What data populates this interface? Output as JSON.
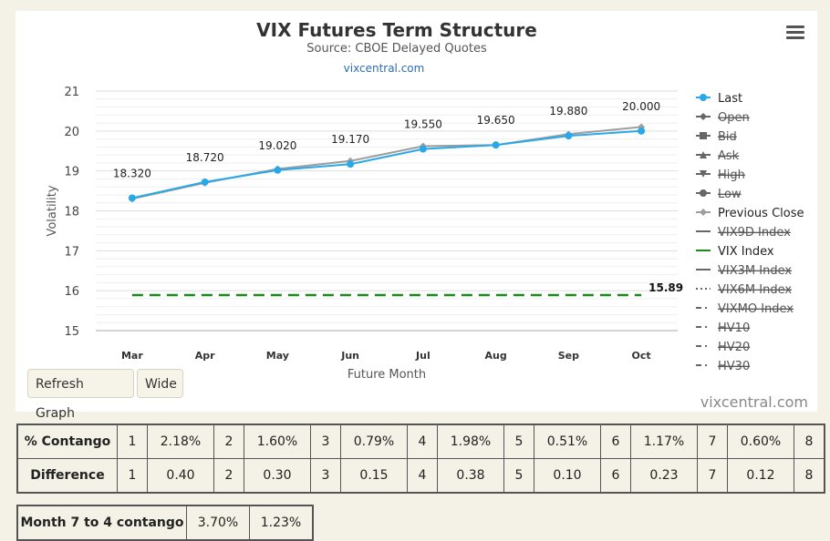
{
  "chart_data": {
    "type": "line",
    "title": "VIX Futures Term Structure",
    "subtitle": "Source: CBOE Delayed Quotes",
    "link": "vixcentral.com",
    "xlabel": "Future Month",
    "ylabel": "Volatility",
    "ylim": [
      15,
      21
    ],
    "y_ticks": [
      15,
      16,
      17,
      18,
      19,
      20,
      21
    ],
    "categories": [
      "Mar",
      "Apr",
      "May",
      "Jun",
      "Jul",
      "Aug",
      "Sep",
      "Oct"
    ],
    "grid": true,
    "legend_position": "right",
    "series": [
      {
        "name": "Last",
        "values": [
          18.32,
          18.72,
          19.02,
          19.17,
          19.55,
          19.65,
          19.88,
          20.0
        ],
        "color": "#29a8e8",
        "data_labels": [
          "18.320",
          "18.720",
          "19.020",
          "19.170",
          "19.550",
          "19.650",
          "19.880",
          "20.000"
        ]
      },
      {
        "name": "Previous Close",
        "values": [
          18.3,
          18.7,
          19.05,
          19.25,
          19.62,
          19.65,
          19.92,
          20.1
        ],
        "color": "#9e9e9e"
      },
      {
        "name": "VIX Index",
        "values": [
          15.89,
          15.89,
          15.89,
          15.89,
          15.89,
          15.89,
          15.89,
          15.89
        ],
        "color": "#1a8a1a",
        "end_label": "15.89"
      }
    ],
    "legend": [
      {
        "name": "Last",
        "hidden": false,
        "symbol": "circle",
        "color": "#29a8e8"
      },
      {
        "name": "Open",
        "hidden": true,
        "symbol": "diamond",
        "color": "#555555"
      },
      {
        "name": "Bid",
        "hidden": true,
        "symbol": "square",
        "color": "#555555"
      },
      {
        "name": "Ask",
        "hidden": true,
        "symbol": "triangle",
        "color": "#555555"
      },
      {
        "name": "High",
        "hidden": true,
        "symbol": "triangle-down",
        "color": "#555555"
      },
      {
        "name": "Low",
        "hidden": true,
        "symbol": "circle",
        "color": "#555555"
      },
      {
        "name": "Previous Close",
        "hidden": false,
        "symbol": "diamond",
        "color": "#9e9e9e"
      },
      {
        "name": "VIX9D Index",
        "hidden": true,
        "symbol": "line",
        "color": "#555555"
      },
      {
        "name": "VIX Index",
        "hidden": false,
        "symbol": "line",
        "color": "#1a8a1a"
      },
      {
        "name": "VIX3M Index",
        "hidden": true,
        "symbol": "line",
        "color": "#555555"
      },
      {
        "name": "VIX6M Index",
        "hidden": true,
        "symbol": "dotted",
        "color": "#555555"
      },
      {
        "name": "VIXMO Index",
        "hidden": true,
        "symbol": "dashdot",
        "color": "#555555"
      },
      {
        "name": "HV10",
        "hidden": true,
        "symbol": "dashdot",
        "color": "#555555"
      },
      {
        "name": "HV20",
        "hidden": true,
        "symbol": "dashdot",
        "color": "#555555"
      },
      {
        "name": "HV30",
        "hidden": true,
        "symbol": "dashdot",
        "color": "#555555"
      }
    ]
  },
  "buttons": {
    "refresh": "Refresh Graph",
    "wide": "Wide"
  },
  "credit": "vixcentral.com",
  "contango_table": {
    "rows": [
      {
        "label": "% Contango",
        "cells": [
          [
            "1",
            "2.18%"
          ],
          [
            "2",
            "1.60%"
          ],
          [
            "3",
            "0.79%"
          ],
          [
            "4",
            "1.98%"
          ],
          [
            "5",
            "0.51%"
          ],
          [
            "6",
            "1.17%"
          ],
          [
            "7",
            "0.60%"
          ]
        ],
        "last": "8"
      },
      {
        "label": "Difference",
        "cells": [
          [
            "1",
            "0.40"
          ],
          [
            "2",
            "0.30"
          ],
          [
            "3",
            "0.15"
          ],
          [
            "4",
            "0.38"
          ],
          [
            "5",
            "0.10"
          ],
          [
            "6",
            "0.23"
          ],
          [
            "7",
            "0.12"
          ]
        ],
        "last": "8"
      }
    ]
  },
  "month74": {
    "label": "Month 7 to 4 contango",
    "values": [
      "3.70%",
      "1.23%"
    ]
  }
}
